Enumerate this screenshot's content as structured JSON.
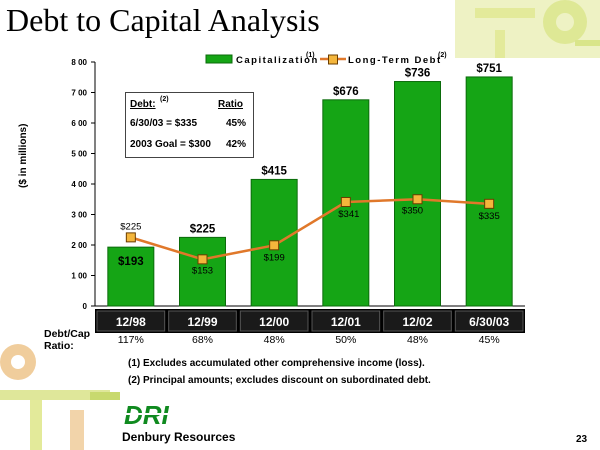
{
  "title": "Debt to Capital Analysis",
  "page_number": "23",
  "company": "Denbury Resources",
  "logo_text": "DRI",
  "footnotes": [
    "(1) Excludes accumulated other comprehensive income (loss).",
    "(2) Principal amounts; excludes discount on subordinated debt."
  ],
  "ratio_row": {
    "label": "Debt/Cap Ratio:",
    "values": [
      "117%",
      "68%",
      "48%",
      "50%",
      "48%",
      "45%"
    ]
  },
  "inset": {
    "debt_label": "Debt:",
    "debt_sup": "(2)",
    "ratio_label": "Ratio",
    "rows": [
      {
        "label": "6/30/03 = $335",
        "ratio": "45%"
      },
      {
        "label": "2003 Goal = $300",
        "ratio": "42%"
      }
    ]
  },
  "colors": {
    "bar": "#15a515",
    "bar_border": "#0b6b0b",
    "line": "#e0782a",
    "marker": "#f4b63c",
    "axis_band": "#000000",
    "accent": "#c8d96e"
  },
  "chart_data": {
    "type": "bar",
    "categories": [
      "12/98",
      "12/99",
      "12/00",
      "12/01",
      "12/02",
      "6/30/03"
    ],
    "series": [
      {
        "name": "Capitalization",
        "legend_sup": "(1)",
        "type": "bar",
        "values": [
          193,
          225,
          415,
          676,
          736,
          751
        ],
        "labels": [
          "$193",
          "$225",
          "$415",
          "$676",
          "$736",
          "$751"
        ]
      },
      {
        "name": "Long-Term Debt",
        "legend_sup": "(2)",
        "type": "line",
        "values": [
          225,
          153,
          199,
          341,
          350,
          335
        ],
        "labels": [
          "$225",
          "$153",
          "$199",
          "$341",
          "$350",
          "$335"
        ]
      }
    ],
    "ylabel": "($ in millions)",
    "ylim": [
      0,
      800
    ],
    "yticks": [
      0,
      100,
      200,
      300,
      400,
      500,
      600,
      700,
      800
    ],
    "ytick_labels": [
      "0",
      "1 00",
      "2 00",
      "3 00",
      "4 00",
      "5 00",
      "6 00",
      "7 00",
      "8 00"
    ],
    "grid": false,
    "legend": "top"
  }
}
